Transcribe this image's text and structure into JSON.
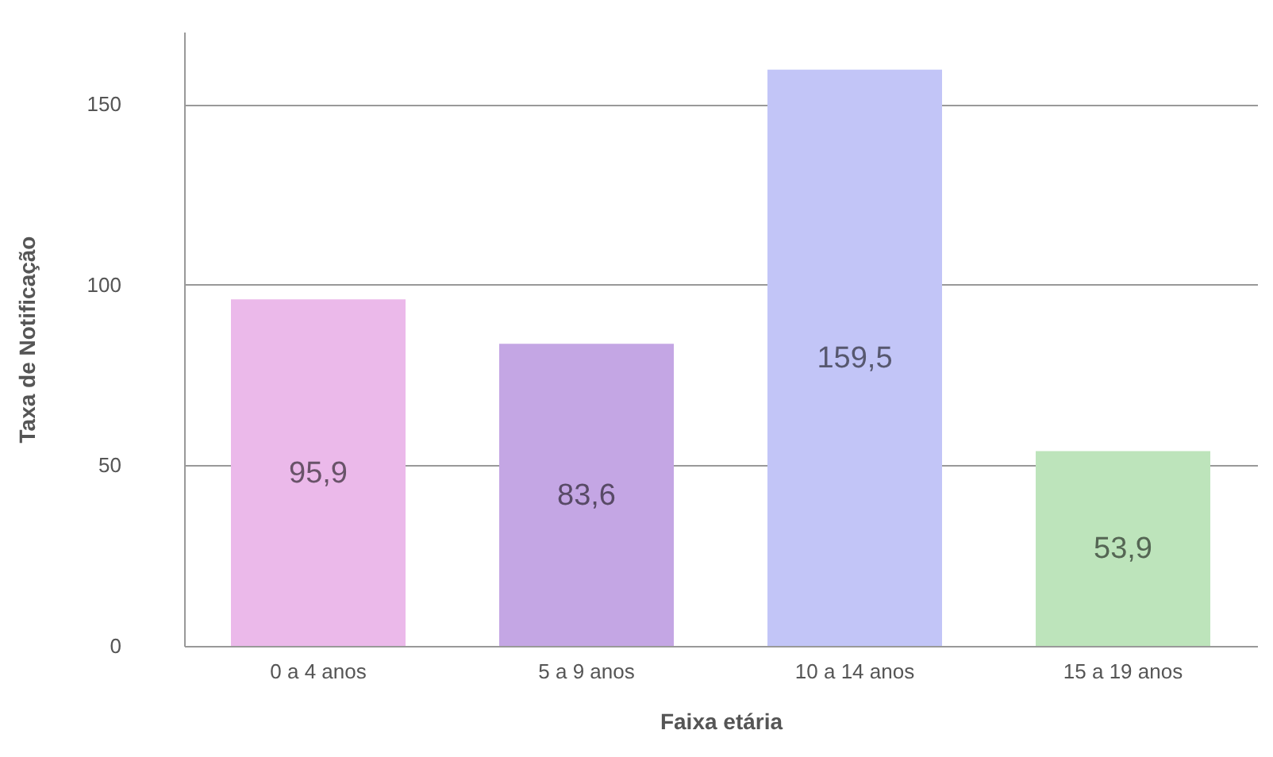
{
  "chart_data": {
    "type": "bar",
    "xlabel": "Faixa etária",
    "ylabel": "Taxa de Notificação",
    "categories": [
      "0 a 4 anos",
      "5 a 9 anos",
      "10 a 14 anos",
      "15 a 19 anos"
    ],
    "values": [
      95.9,
      83.6,
      159.5,
      53.9
    ],
    "value_labels": [
      "95,9",
      "83,6",
      "159,5",
      "53,9"
    ],
    "colors": [
      "#ebb9ea",
      "#c4a6e4",
      "#c2c5f7",
      "#bde4bb"
    ],
    "ylim": [
      0,
      170
    ],
    "yticks": [
      0,
      50,
      100,
      150
    ],
    "grid": "y"
  }
}
